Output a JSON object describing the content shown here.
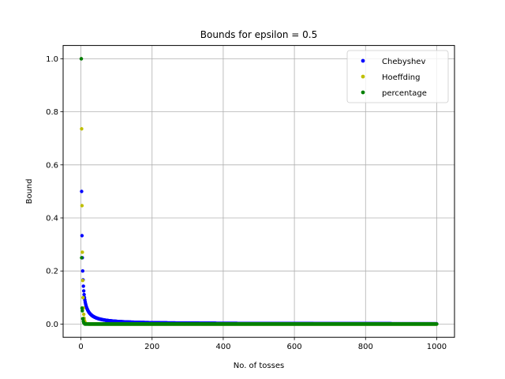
{
  "chart_data": {
    "type": "scatter",
    "title": "Bounds for epsilon = 0.5",
    "xlabel": "No. of tosses",
    "ylabel": "Bound",
    "xlim": [
      -50,
      1050
    ],
    "ylim": [
      -0.05,
      1.05
    ],
    "xticks": [
      0,
      200,
      400,
      600,
      800,
      1000
    ],
    "yticks": [
      0.0,
      0.2,
      0.4,
      0.6,
      0.8,
      1.0
    ],
    "xtick_labels": [
      "0",
      "200",
      "400",
      "600",
      "800",
      "1000"
    ],
    "ytick_labels": [
      "0.0",
      "0.2",
      "0.4",
      "0.6",
      "0.8",
      "1.0"
    ],
    "grid": true,
    "legend_position": "top-right",
    "x_range": [
      1,
      1000
    ],
    "series": [
      {
        "name": "Chebyshev",
        "color": "#0000ff",
        "formula": "min(1, 1/(4*n*epsilon^2))",
        "epsilon": 0.5
      },
      {
        "name": "Hoeffding",
        "color": "#bfbf00",
        "formula": "min(1, 2*exp(-2*n*epsilon^2))",
        "epsilon": 0.5
      },
      {
        "name": "percentage",
        "color": "#008000",
        "values_head": [
          1.0,
          0.25,
          0.06,
          0.05,
          0.02,
          0.02,
          0.01,
          0.005,
          0.003,
          0.002
        ],
        "tail_value": 0.0
      }
    ]
  }
}
